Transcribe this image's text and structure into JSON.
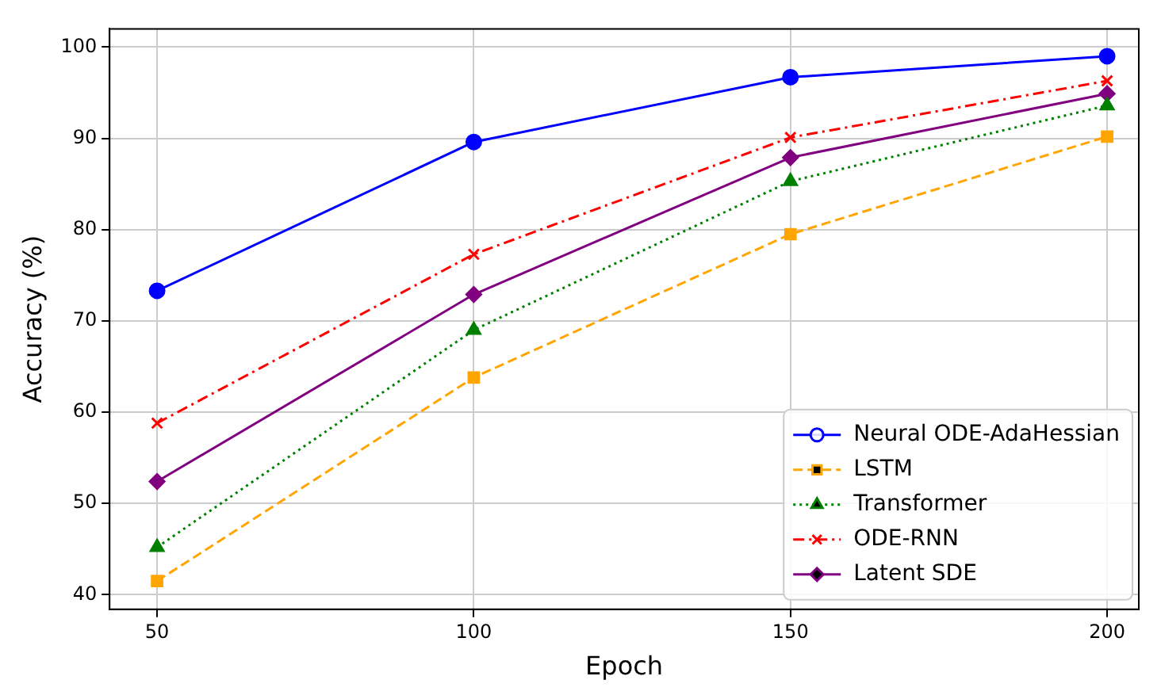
{
  "chart_data": {
    "type": "line",
    "xlabel": "Epoch",
    "ylabel": "Accuracy (%)",
    "x": [
      50,
      100,
      150,
      200
    ],
    "xlim": [
      42.5,
      205
    ],
    "xticks": [
      50,
      100,
      150,
      200
    ],
    "ylim": [
      38.4,
      102
    ],
    "yticks": [
      40,
      50,
      60,
      70,
      80,
      90,
      100
    ],
    "grid": true,
    "legend": "bottom right",
    "series": [
      {
        "name": "Neural ODE-AdaHessian",
        "color": "#0000ff",
        "marker": "circle",
        "line_style": "solid",
        "values": [
          73.3,
          89.6,
          96.7,
          99.0
        ]
      },
      {
        "name": "LSTM",
        "color": "#ffa500",
        "marker": "square",
        "line_style": "dashed",
        "values": [
          41.5,
          63.8,
          79.5,
          90.2
        ]
      },
      {
        "name": "Transformer",
        "color": "#008000",
        "marker": "triangle",
        "line_style": "dotted",
        "values": [
          45.2,
          69.0,
          85.3,
          93.6
        ]
      },
      {
        "name": "ODE-RNN",
        "color": "#ff0000",
        "marker": "cross",
        "line_style": "dashdot",
        "values": [
          58.8,
          77.3,
          90.1,
          96.3
        ]
      },
      {
        "name": "Latent SDE",
        "color": "#800080",
        "marker": "diamond",
        "line_style": "solid",
        "values": [
          52.4,
          72.9,
          87.9,
          94.9
        ]
      }
    ]
  }
}
